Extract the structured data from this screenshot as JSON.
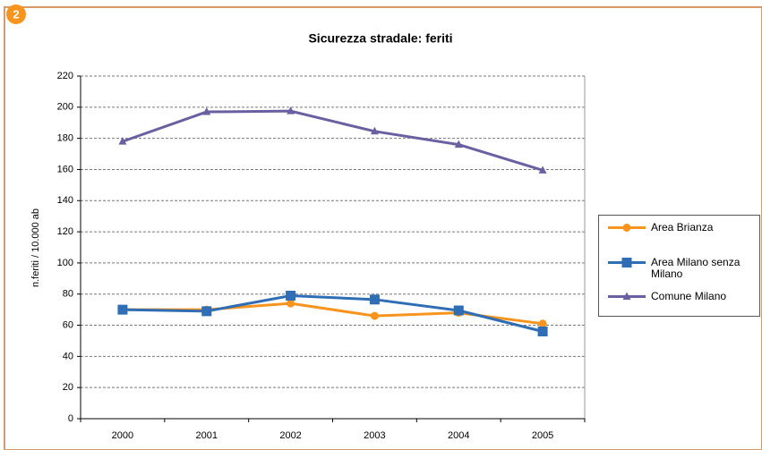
{
  "badge": "2",
  "chart_data": {
    "type": "line",
    "title": "Sicurezza stradale: feriti",
    "ylabel": "n.feriti / 10.000 ab",
    "categories": [
      "2000",
      "2001",
      "2002",
      "2003",
      "2004",
      "2005"
    ],
    "series": [
      {
        "name": "Area Brianza",
        "color": "#f7941d",
        "marker": "circle",
        "values": [
          70,
          70,
          74,
          66,
          68,
          61
        ]
      },
      {
        "name": "Area Milano senza Milano",
        "color": "#2f6db5",
        "marker": "square",
        "values": [
          70,
          69,
          79,
          76.5,
          69.5,
          56
        ]
      },
      {
        "name": "Comune Milano",
        "color": "#6a5fa0",
        "marker": "triangle",
        "values": [
          178,
          197,
          197.5,
          184.5,
          176,
          159.5
        ]
      }
    ],
    "ylim": [
      0,
      220
    ],
    "yticks": [
      0,
      20,
      40,
      60,
      80,
      100,
      120,
      140,
      160,
      180,
      200,
      220
    ],
    "grid": true,
    "legend": "right"
  }
}
